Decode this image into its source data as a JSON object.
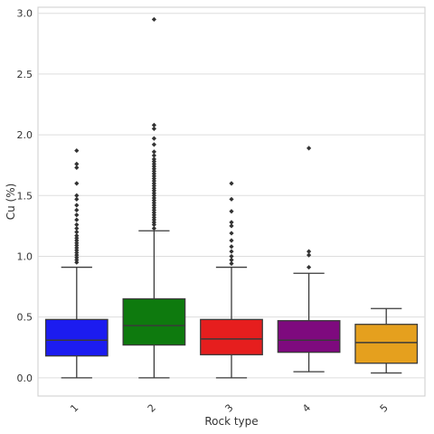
{
  "chart_data": {
    "type": "box",
    "title": "",
    "xlabel": "Rock type",
    "ylabel": "Cu (%)",
    "categories": [
      "1",
      "2",
      "3",
      "4",
      "5"
    ],
    "ylim": [
      -0.15,
      3.05
    ],
    "yticks": [
      0.0,
      0.5,
      1.0,
      1.5,
      2.0,
      2.5,
      3.0
    ],
    "ytick_labels": [
      "0.0",
      "0.5",
      "1.0",
      "1.5",
      "2.0",
      "2.5",
      "3.0"
    ],
    "grid": true,
    "legend": false,
    "boxes": [
      {
        "category": "1",
        "color": "#1c1cf0",
        "whisker_low": 0.0,
        "q1": 0.18,
        "median": 0.31,
        "q3": 0.48,
        "whisker_high": 0.91,
        "outliers": [
          0.95,
          0.97,
          0.99,
          1.01,
          1.03,
          1.05,
          1.07,
          1.09,
          1.11,
          1.13,
          1.15,
          1.17,
          1.2,
          1.23,
          1.26,
          1.3,
          1.34,
          1.38,
          1.42,
          1.47,
          1.5,
          1.6,
          1.73,
          1.76,
          1.87
        ]
      },
      {
        "category": "2",
        "color": "#0e7a0e",
        "whisker_low": 0.0,
        "q1": 0.27,
        "median": 0.43,
        "q3": 0.65,
        "whisker_high": 1.21,
        "outliers": [
          1.23,
          1.26,
          1.28,
          1.3,
          1.32,
          1.34,
          1.36,
          1.38,
          1.4,
          1.42,
          1.44,
          1.46,
          1.48,
          1.5,
          1.52,
          1.54,
          1.56,
          1.58,
          1.6,
          1.62,
          1.64,
          1.66,
          1.68,
          1.7,
          1.72,
          1.74,
          1.76,
          1.78,
          1.8,
          1.83,
          1.86,
          1.92,
          1.97,
          2.05,
          2.08,
          2.95
        ]
      },
      {
        "category": "3",
        "color": "#e61e1e",
        "whisker_low": 0.0,
        "q1": 0.19,
        "median": 0.32,
        "q3": 0.48,
        "whisker_high": 0.91,
        "outliers": [
          0.94,
          0.97,
          1.0,
          1.04,
          1.08,
          1.13,
          1.19,
          1.25,
          1.28,
          1.37,
          1.47,
          1.6
        ]
      },
      {
        "category": "4",
        "color": "#7e0a7e",
        "whisker_low": 0.05,
        "q1": 0.21,
        "median": 0.31,
        "q3": 0.47,
        "whisker_high": 0.86,
        "outliers": [
          0.91,
          1.01,
          1.04,
          1.89
        ]
      },
      {
        "category": "5",
        "color": "#e5a01e",
        "whisker_low": 0.04,
        "q1": 0.12,
        "median": 0.29,
        "q3": 0.44,
        "whisker_high": 0.57,
        "outliers": []
      }
    ]
  }
}
